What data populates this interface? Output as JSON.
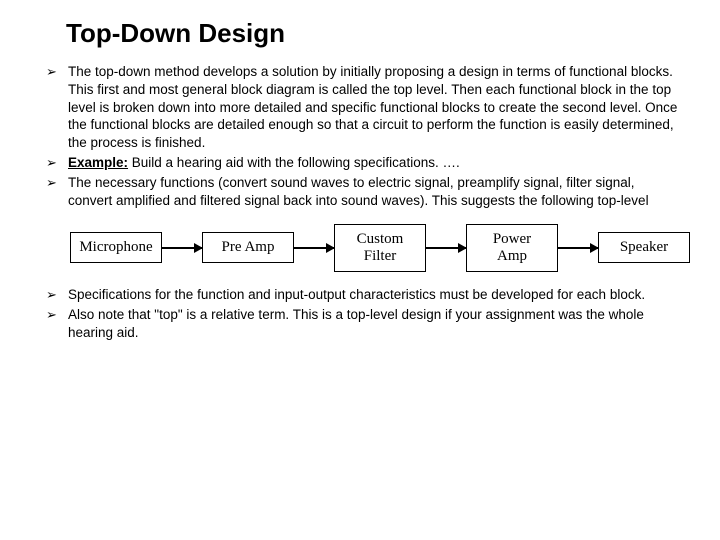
{
  "title": "Top-Down Design",
  "bullets_top": [
    {
      "text": "The top-down method develops a solution by initially proposing a design in terms of functional blocks.  This first and most general block diagram is called the top level.  Then each functional block in the top level is broken down into more detailed and specific functional blocks to create the second level.  Once the functional blocks are detailed enough so that a circuit to perform the function is easily determined, the process is finished."
    },
    {
      "prefix_bold_underline": "Example:",
      "text": "   Build a hearing aid with the following specifications. …."
    },
    {
      "text": "The necessary functions (convert sound waves to electric signal, preamplify signal, filter signal, convert amplified and filtered signal back into sound waves).  This suggests the following top-level"
    }
  ],
  "diagram": {
    "type": "flowchart",
    "nodes": [
      "Microphone",
      "Pre Amp",
      "Custom\nFilter",
      "Power\nAmp",
      "Speaker"
    ],
    "border_color": "#000000",
    "arrow_color": "#000000",
    "box_font": "Times New Roman",
    "box_fontsize": 15
  },
  "bullets_bottom": [
    {
      "text": "Specifications for the function and input-output characteristics must be developed for each block."
    },
    {
      "text": "Also note that \"top\" is a relative term.  This is a top-level design if your assignment was the whole hearing aid."
    }
  ]
}
